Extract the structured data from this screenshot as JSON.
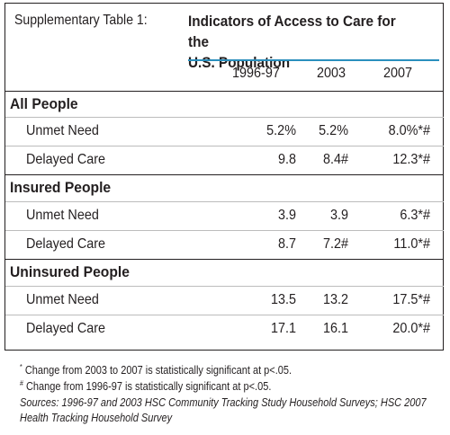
{
  "caption": "Supplementary Table 1:",
  "title_line1": "Indicators of Access to Care for the",
  "title_line2": "U.S. Population",
  "columns": [
    "1996-97",
    "2003",
    "2007"
  ],
  "groups": [
    {
      "label": "All People",
      "rows": [
        {
          "label": "Unmet Need",
          "values": [
            "5.2%",
            "5.2%",
            "8.0%*#"
          ]
        },
        {
          "label": "Delayed Care",
          "values": [
            "9.8",
            "8.4#",
            "12.3*#"
          ]
        }
      ]
    },
    {
      "label": "Insured People",
      "rows": [
        {
          "label": "Unmet Need",
          "values": [
            "3.9",
            "3.9",
            "6.3*#"
          ]
        },
        {
          "label": "Delayed Care",
          "values": [
            "8.7",
            "7.2#",
            "11.0*#"
          ]
        }
      ]
    },
    {
      "label": "Uninsured People",
      "rows": [
        {
          "label": "Unmet Need",
          "values": [
            "13.5",
            "13.2",
            "17.5*#"
          ]
        },
        {
          "label": "Delayed Care",
          "values": [
            "17.1",
            "16.1",
            "20.0*#"
          ]
        }
      ]
    }
  ],
  "notes": {
    "star_mark": "*",
    "star_text": "Change from 2003 to 2007 is statistically significant at p<.05.",
    "hash_mark": "#",
    "hash_text": "Change from 1996-97 is statistically significant at p<.05.",
    "sources_line1": "Sources: 1996-97 and 2003 HSC Community Tracking Study Household Surveys; HSC 2007",
    "sources_line2": "Health Tracking Household Survey"
  }
}
